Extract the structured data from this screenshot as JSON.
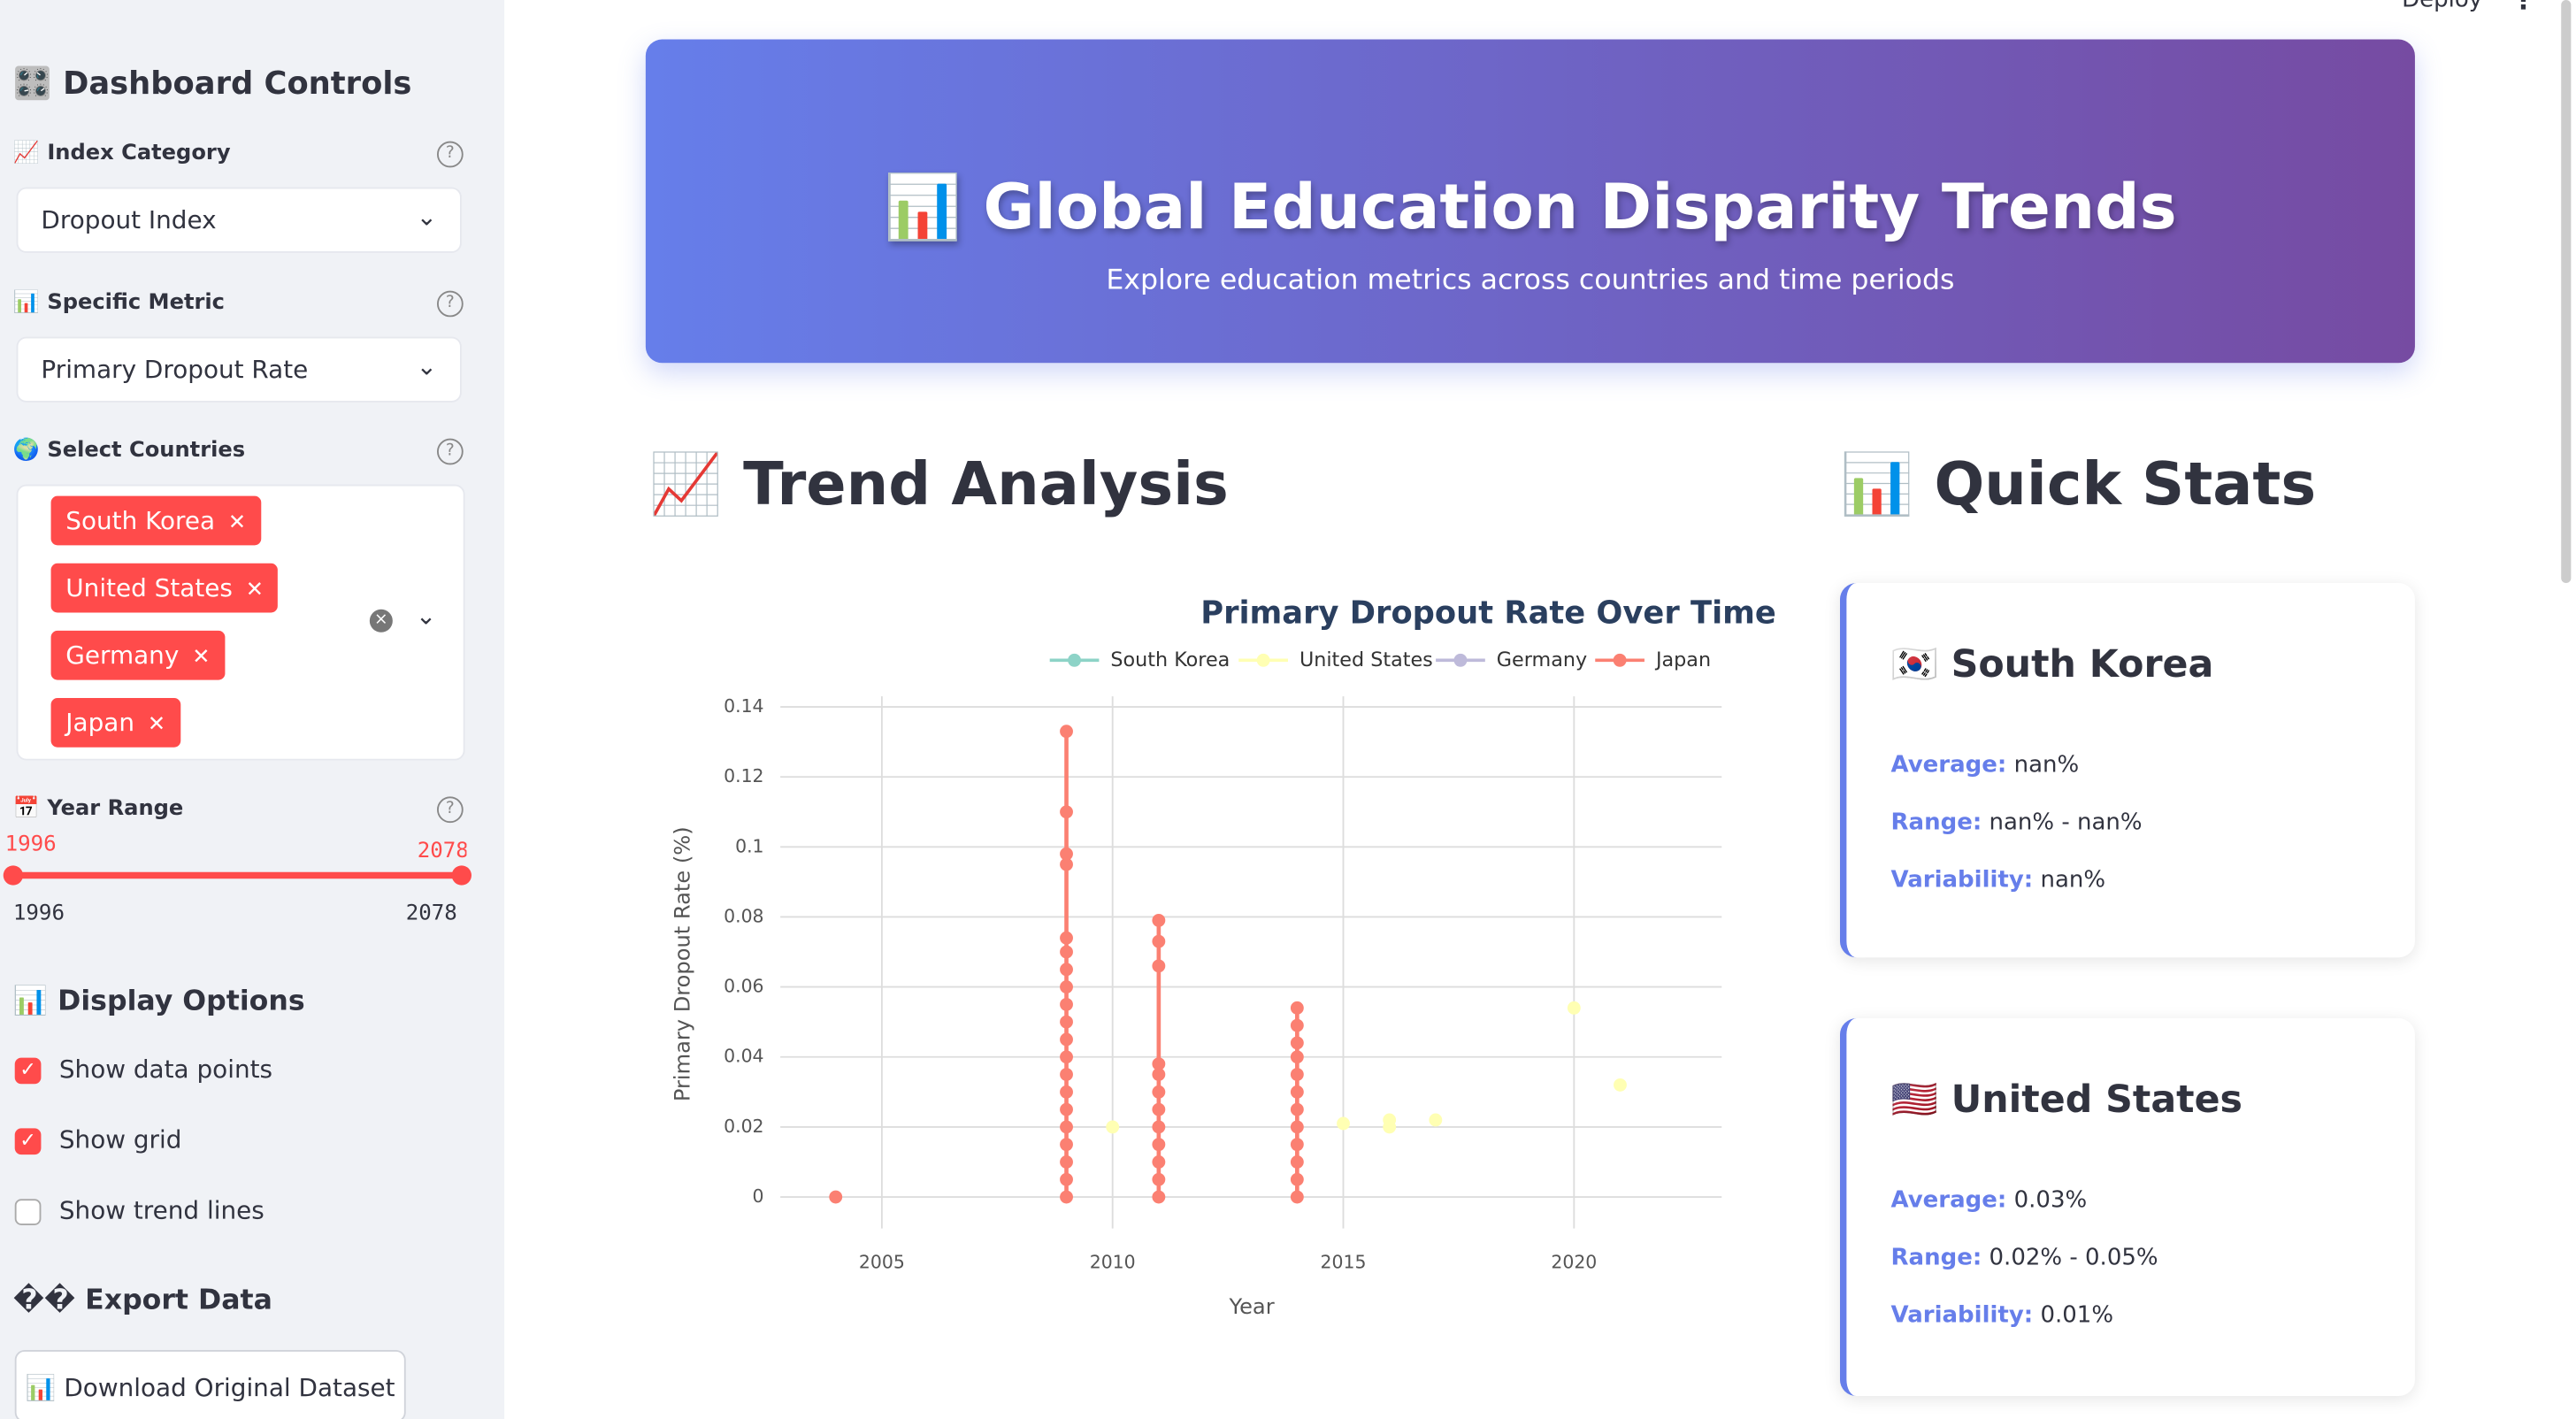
{
  "header": {
    "deploy": "Deploy"
  },
  "sidebar": {
    "title": "🎛️ Dashboard Controls",
    "index_label": "📈 Index Category",
    "index_value": "Dropout Index",
    "metric_label": "📊 Specific Metric",
    "metric_value": "Primary Dropout Rate",
    "countries_label": "🌍 Select Countries",
    "countries": [
      "South Korea",
      "United States",
      "Germany",
      "Japan"
    ],
    "year_label": "📅 Year Range",
    "year_min": 1996,
    "year_max": 2078,
    "display_title": "📊 Display Options",
    "options": [
      {
        "label": "Show data points",
        "checked": true
      },
      {
        "label": "Show grid",
        "checked": true
      },
      {
        "label": "Show trend lines",
        "checked": false
      }
    ],
    "export_title": "�� Export Data",
    "download": "📊 Download Original Dataset"
  },
  "banner": {
    "title": "📊 Global Education Disparity Trends",
    "subtitle": "Explore education metrics across countries and time periods"
  },
  "trend_title": "📈 Trend Analysis",
  "stats_title": "📊 Quick Stats",
  "stat_labels": {
    "average": "Average:",
    "range": "Range:",
    "variability": "Variability:"
  },
  "stats": [
    {
      "country": "🇰🇷 South Korea",
      "average": "nan%",
      "range": "nan% - nan%",
      "variability": "nan%"
    },
    {
      "country": "🇺🇸 United States",
      "average": "0.03%",
      "range": "0.02% - 0.05%",
      "variability": "0.01%"
    }
  ],
  "chart_data": {
    "type": "scatter",
    "title": "Primary Dropout Rate Over Time",
    "x_label": "Year",
    "y_label": "Primary Dropout Rate (%)",
    "xlim": [
      2002.8,
      2023.2
    ],
    "ylim": [
      -0.009,
      0.143
    ],
    "xticks": [
      2005,
      2010,
      2015,
      2020
    ],
    "yticks": [
      0,
      0.02,
      0.04,
      0.06,
      0.08,
      0.1,
      0.12,
      0.14
    ],
    "grid": true,
    "legend": "top",
    "series": [
      {
        "name": "South Korea",
        "color": "#8dd3c7",
        "x": [],
        "values": []
      },
      {
        "name": "United States",
        "color": "#ffffb3",
        "x": [
          2010,
          2015,
          2016,
          2016,
          2017,
          2020,
          2021
        ],
        "values": [
          0.02,
          0.021,
          0.022,
          0.02,
          0.022,
          0.054,
          0.032
        ]
      },
      {
        "name": "Germany",
        "color": "#bebada",
        "x": [],
        "values": []
      },
      {
        "name": "Japan",
        "color": "#fb8072",
        "x": [
          2004,
          2009,
          2009,
          2009,
          2009,
          2009,
          2009,
          2009,
          2009,
          2009,
          2009,
          2009,
          2009,
          2009,
          2009,
          2009,
          2009,
          2009,
          2009,
          2009,
          2009,
          2011,
          2011,
          2011,
          2011,
          2011,
          2011,
          2011,
          2011,
          2011,
          2011,
          2011,
          2011,
          2014,
          2014,
          2014,
          2014,
          2014,
          2014,
          2014,
          2014,
          2014,
          2014,
          2014,
          2014
        ],
        "values": [
          0,
          0,
          0.005,
          0.01,
          0.015,
          0.02,
          0.025,
          0.03,
          0.035,
          0.04,
          0.045,
          0.05,
          0.055,
          0.06,
          0.065,
          0.07,
          0.074,
          0.095,
          0.098,
          0.11,
          0.133,
          0,
          0.005,
          0.01,
          0.015,
          0.02,
          0.025,
          0.03,
          0.035,
          0.038,
          0.066,
          0.073,
          0.079,
          0,
          0.005,
          0.01,
          0.015,
          0.02,
          0.025,
          0.03,
          0.035,
          0.04,
          0.044,
          0.049,
          0.054
        ]
      }
    ]
  }
}
